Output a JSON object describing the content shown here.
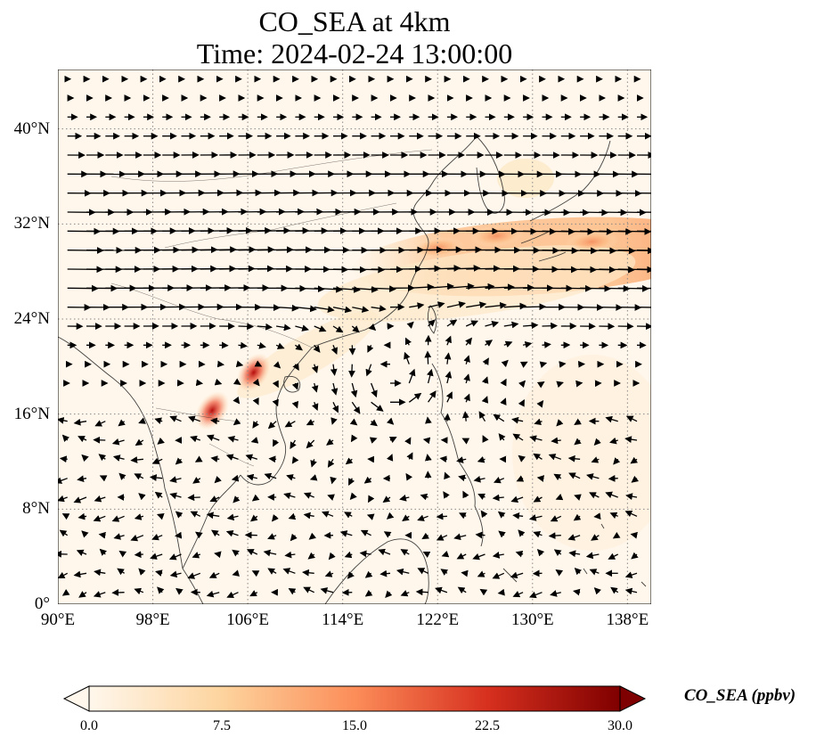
{
  "title": {
    "line1": "CO_SEA at 4km",
    "line2": "Time: 2024-02-24 13:00:00"
  },
  "map": {
    "lon_range": [
      90,
      140
    ],
    "lat_range": [
      0,
      45
    ],
    "gridline_style": "dotted",
    "x_ticks": [
      "90°E",
      "98°E",
      "106°E",
      "114°E",
      "122°E",
      "130°E",
      "138°E"
    ],
    "y_ticks": [
      "0°",
      "8°N",
      "16°N",
      "24°N",
      "32°N",
      "40°N"
    ],
    "overlay": "wind vectors (black arrows)",
    "hotspots": [
      {
        "lon": 103,
        "lat": 16.3,
        "level": "high"
      },
      {
        "lon": 106.5,
        "lat": 19.5,
        "level": "high"
      },
      {
        "lon": 122,
        "lat": 30,
        "level": "medium"
      },
      {
        "lon": 127,
        "lat": 31,
        "level": "medium"
      },
      {
        "lon": 135,
        "lat": 30.5,
        "level": "medium"
      }
    ]
  },
  "colorbar": {
    "title": "CO_SEA (ppbv)",
    "min": 0.0,
    "max": 30.0,
    "ticks": [
      "0.0",
      "7.5",
      "15.0",
      "22.5",
      "30.0"
    ],
    "colormap": "OrRd",
    "colors": [
      "#fff7ec",
      "#fdd49e",
      "#fc8d59",
      "#d7301f",
      "#7f0000"
    ]
  }
}
